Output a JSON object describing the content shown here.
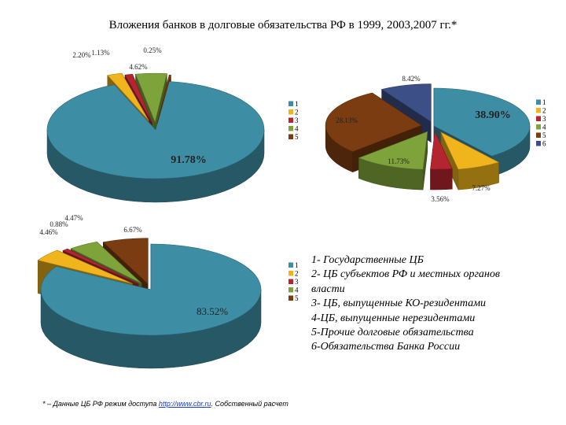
{
  "title": "Вложения банков в долговые обязательства РФ в 1999, 2003,2007 гг.*",
  "colors": [
    "#3d8ea5",
    "#f0b41c",
    "#b52530",
    "#7ea33a",
    "#7a3c10",
    "#3c4f86"
  ],
  "chart_data": [
    {
      "type": "pie",
      "subtype": "3d-exploded",
      "series": [
        {
          "values": [
            91.78,
            2.2,
            1.13,
            4.62,
            0.25
          ]
        }
      ],
      "data_labels": [
        "91.78%",
        "2.20%",
        "1.13%",
        "4.62%",
        "0.25%"
      ],
      "legend": {
        "entries": [
          "1",
          "2",
          "3",
          "4",
          "5"
        ],
        "placement": "right"
      }
    },
    {
      "type": "pie",
      "subtype": "3d-exploded",
      "series": [
        {
          "values": [
            38.9,
            7.27,
            3.56,
            11.73,
            28.13,
            8.42
          ]
        }
      ],
      "data_labels": [
        "38.90%",
        "7.27%",
        "3.56%",
        "11.73%",
        "28.13%",
        "8.42%"
      ],
      "legend": {
        "entries": [
          "1",
          "2",
          "3",
          "4",
          "5",
          "6"
        ],
        "placement": "right"
      }
    },
    {
      "type": "pie",
      "subtype": "3d-exploded",
      "series": [
        {
          "values": [
            83.52,
            4.46,
            0.88,
            4.47,
            6.67
          ]
        }
      ],
      "data_labels": [
        "83.52%",
        "4.46%",
        "0.88%",
        "4.47%",
        "6.67%"
      ],
      "legend": {
        "entries": [
          "1",
          "2",
          "3",
          "4",
          "5"
        ],
        "placement": "right"
      }
    }
  ],
  "legend_text": [
    "1- Государственные ЦБ",
    "2- ЦБ субъектов РФ и местных органов",
    "власти",
    "3- ЦБ, выпущенные КО-резидентами",
    "4-ЦБ, выпущенные нерезидентами",
    "5-Прочие долговые обязательства",
    "6-Обязательства Банка России"
  ],
  "footnote": {
    "prefix": "* – Данные ЦБ РФ режим доступа ",
    "link": "http://www.cbr.ru",
    "suffix": ". Собственный расчет"
  }
}
